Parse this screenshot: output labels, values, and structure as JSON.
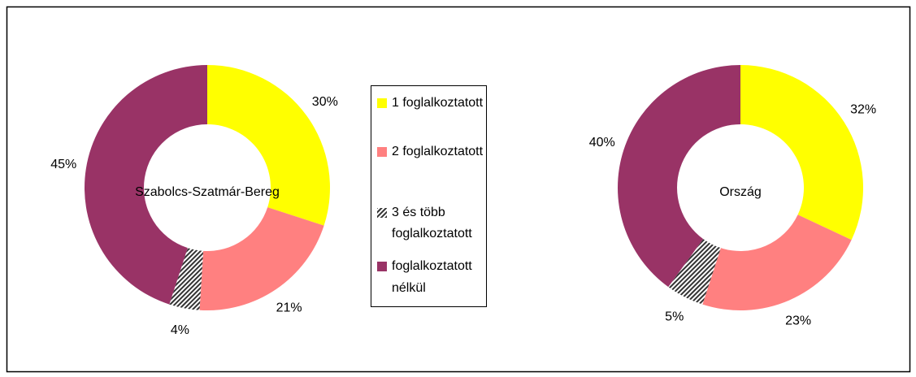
{
  "legend": {
    "categories": [
      "1 foglalkoztatott",
      "2 foglalkoztatott",
      "3 és több foglalkoztatott",
      "foglalkoztatott nélkül"
    ],
    "colors": [
      "#ffff00",
      "#ff8080",
      "#333333",
      "#993366"
    ],
    "hatched": [
      false,
      false,
      true,
      false
    ]
  },
  "chart_data": [
    {
      "type": "donut",
      "title": "Szabolcs-Szatmár-Bereg",
      "values": [
        30,
        21,
        4,
        45
      ],
      "value_labels": [
        "30%",
        "21%",
        "4%",
        "45%"
      ]
    },
    {
      "type": "donut",
      "title": "Ország",
      "values": [
        32,
        23,
        5,
        40
      ],
      "value_labels": [
        "32%",
        "23%",
        "5%",
        "40%"
      ]
    }
  ]
}
